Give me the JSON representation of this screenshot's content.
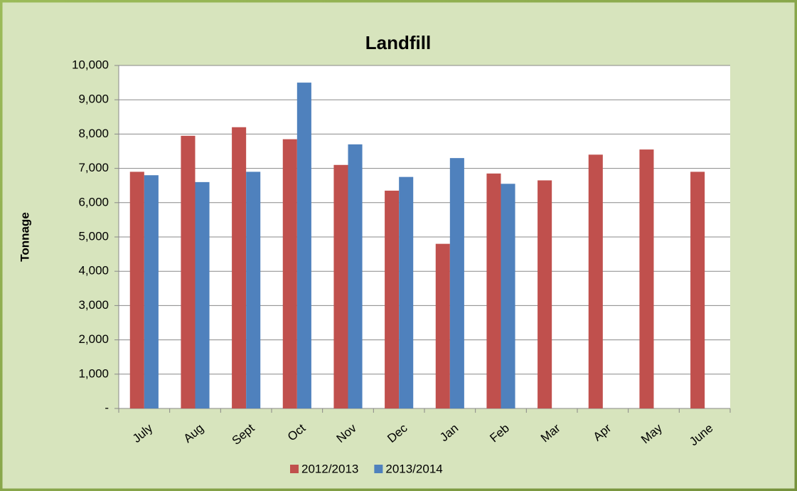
{
  "chart_data": {
    "type": "bar",
    "title": "Landfill",
    "y_label": "Tonnage",
    "categories": [
      "July",
      "Aug",
      "Sept",
      "Oct",
      "Nov",
      "Dec",
      "Jan",
      "Feb",
      "Mar",
      "Apr",
      "May",
      "June"
    ],
    "series": [
      {
        "name": "2012/2013",
        "color": "#c0504d",
        "values": [
          6900,
          7950,
          8200,
          7850,
          7100,
          6350,
          4800,
          6850,
          6650,
          7400,
          7550,
          6900
        ]
      },
      {
        "name": "2013/2014",
        "color": "#4f81bd",
        "values": [
          6800,
          6600,
          6900,
          9500,
          7700,
          6750,
          7300,
          6550,
          null,
          null,
          null,
          null
        ]
      }
    ],
    "ylim": [
      0,
      10000
    ],
    "yticks": [
      {
        "value": 0,
        "label": "-"
      },
      {
        "value": 1000,
        "label": "1,000"
      },
      {
        "value": 2000,
        "label": "2,000"
      },
      {
        "value": 3000,
        "label": "3,000"
      },
      {
        "value": 4000,
        "label": "4,000"
      },
      {
        "value": 5000,
        "label": "5,000"
      },
      {
        "value": 6000,
        "label": "6,000"
      },
      {
        "value": 7000,
        "label": "7,000"
      },
      {
        "value": 8000,
        "label": "8,000"
      },
      {
        "value": 9000,
        "label": "9,000"
      },
      {
        "value": 10000,
        "label": "10,000"
      }
    ],
    "grid": true,
    "legend": "bottom"
  }
}
